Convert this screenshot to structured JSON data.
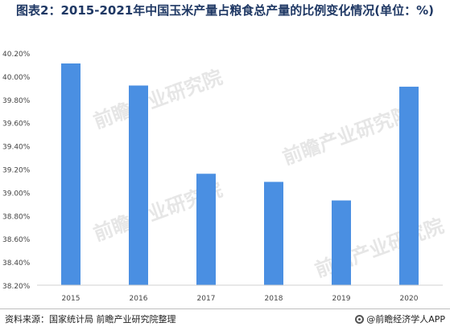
{
  "title": "图表2：2015-2021年中国玉米产量占粮食总产量的比例变化情况(单位：%)",
  "source": "资料来源：国家统计局 前瞻产业研究院整理",
  "brand": "@前瞻经济学人APP",
  "watermark": "前瞻产业研究院",
  "colors": {
    "bar": "#4a8fe2",
    "title": "#1f3864",
    "grid": "#e6e6e6"
  },
  "chart_data": {
    "type": "bar",
    "title": "图表2：2015-2021年中国玉米产量占粮食总产量的比例变化情况(单位：%)",
    "xlabel": "",
    "ylabel": "",
    "categories": [
      "2015",
      "2016",
      "2017",
      "2018",
      "2019",
      "2020"
    ],
    "values": [
      40.11,
      39.92,
      39.16,
      39.09,
      38.93,
      39.91
    ],
    "ylim": [
      38.2,
      40.2
    ],
    "yticks": [
      38.2,
      38.4,
      38.6,
      38.8,
      39.0,
      39.2,
      39.4,
      39.6,
      39.8,
      40.0,
      40.2
    ],
    "ytick_labels": [
      "38.20%",
      "38.40%",
      "38.60%",
      "38.80%",
      "39.00%",
      "39.20%",
      "39.40%",
      "39.60%",
      "39.80%",
      "40.00%",
      "40.20%"
    ],
    "grid": false,
    "legend": "none"
  }
}
